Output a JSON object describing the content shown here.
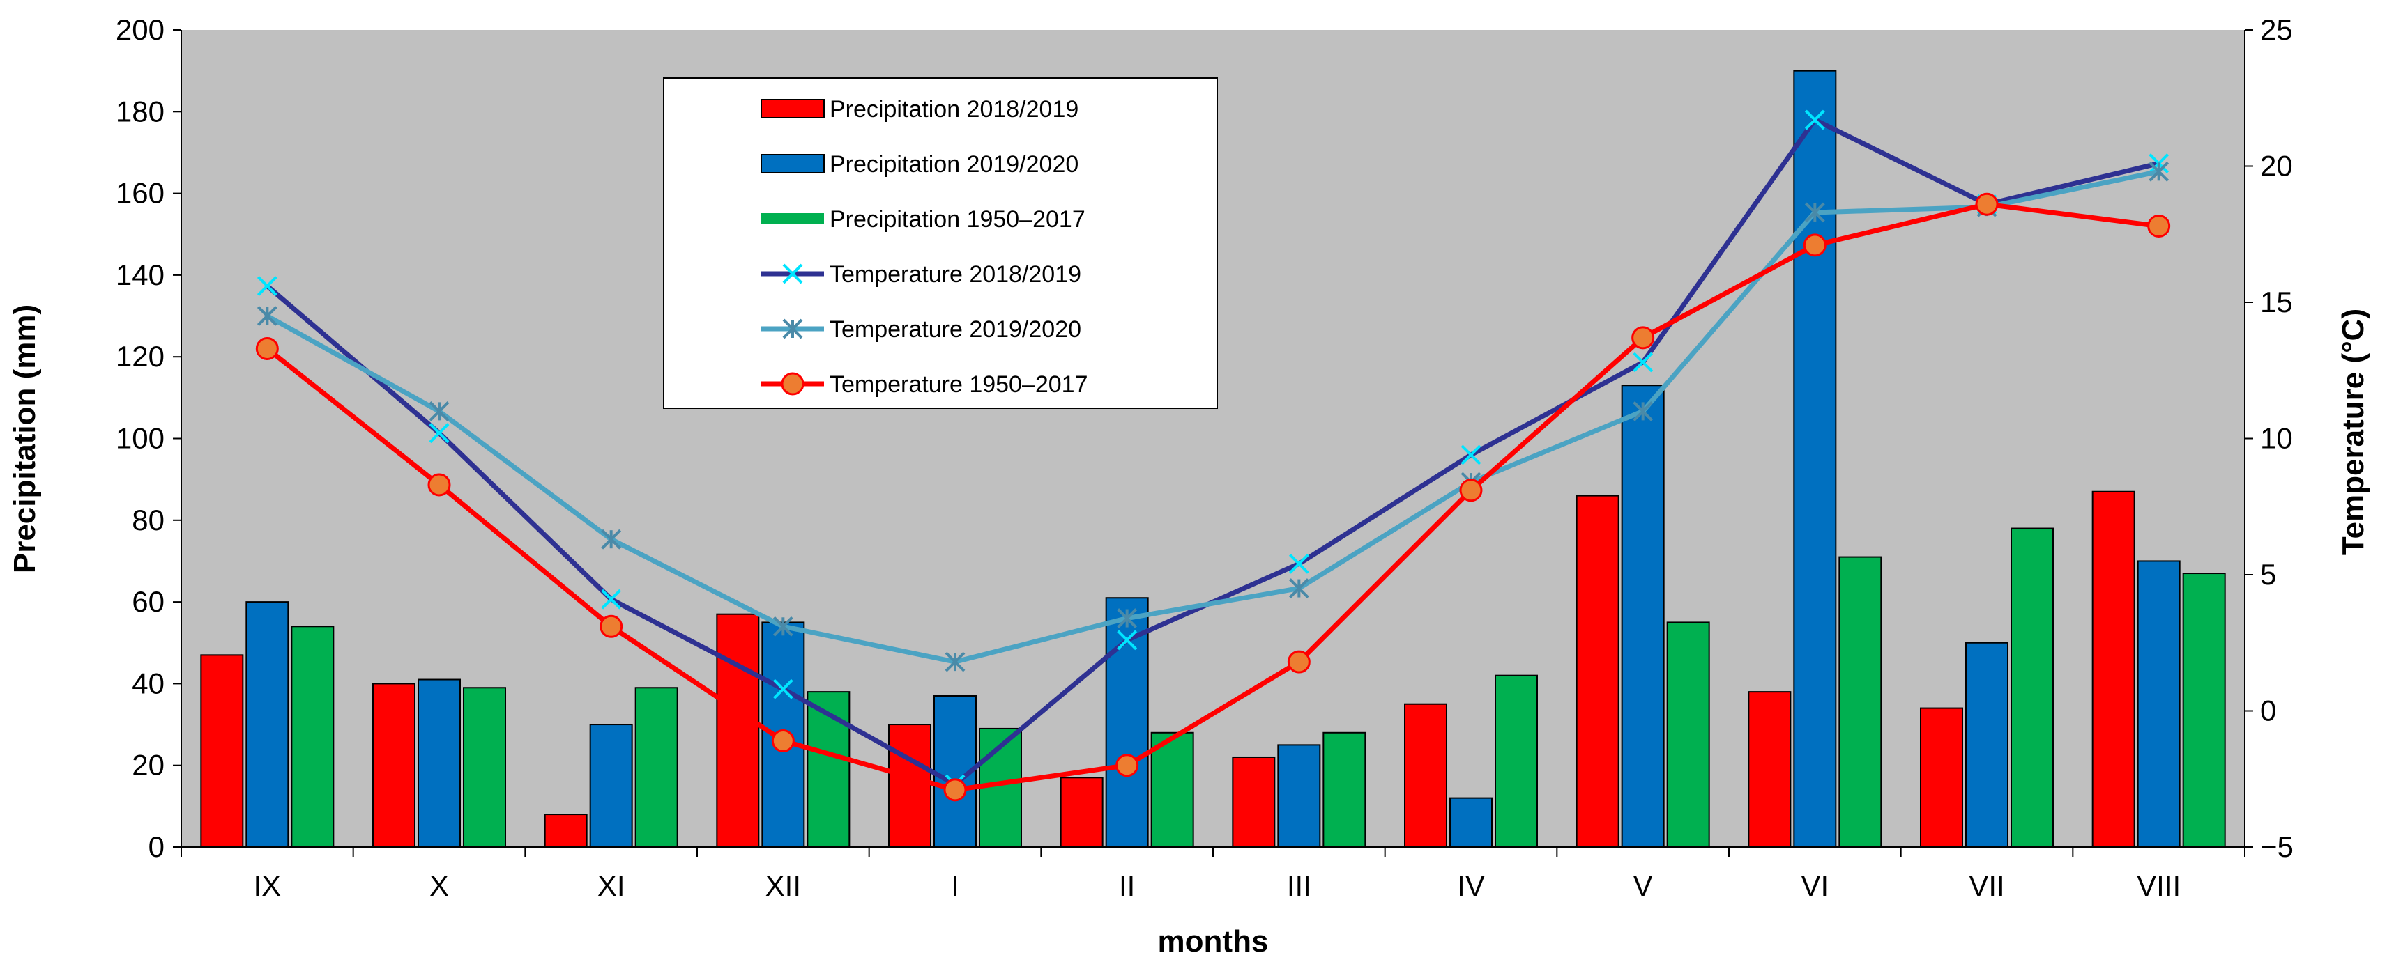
{
  "chart_data": {
    "type": "bar",
    "categories": [
      "IX",
      "X",
      "XI",
      "XII",
      "I",
      "II",
      "III",
      "IV",
      "V",
      "VI",
      "VII",
      "VIII"
    ],
    "xlabel": "months",
    "ylabel": "Precipitation (mm)",
    "y2label": "Temperature (°C)",
    "ylim": [
      0,
      200
    ],
    "y2lim": [
      -5,
      25
    ],
    "yticks": [
      "0",
      "20",
      "40",
      "60",
      "80",
      "100",
      "120",
      "140",
      "160",
      "180",
      "200"
    ],
    "y2ticks": [
      "−5",
      "0",
      "5",
      "10",
      "15",
      "20",
      "25"
    ],
    "grid": false,
    "legend_position": "top-center",
    "bar_series": [
      {
        "name": "Precipitation 2018/2019",
        "color": "#ff0000",
        "values": [
          47,
          40,
          8,
          57,
          30,
          17,
          22,
          35,
          86,
          38,
          34,
          87
        ]
      },
      {
        "name": "Precipitation 2019/2020",
        "color": "#0070c0",
        "values": [
          60,
          41,
          30,
          55,
          37,
          61,
          25,
          12,
          113,
          190,
          50,
          70
        ]
      },
      {
        "name": "Precipitation  1950–2017",
        "color": "#00b050",
        "values": [
          54,
          39,
          39,
          38,
          29,
          28,
          28,
          42,
          55,
          71,
          78,
          67
        ]
      }
    ],
    "line_series": [
      {
        "name": "Temperature 2018/2019",
        "color": "#2e3192",
        "marker": "x",
        "marker_color": "#00e5ff",
        "values": [
          15.6,
          10.2,
          4.1,
          0.8,
          -2.7,
          2.6,
          5.4,
          9.4,
          12.8,
          21.7,
          18.6,
          20.1
        ]
      },
      {
        "name": "Temperature 2019/2020",
        "color": "#4ba3c3",
        "marker": "star",
        "marker_color": "#4a8aa8",
        "values": [
          14.5,
          11.0,
          6.3,
          3.1,
          1.8,
          3.4,
          4.5,
          8.4,
          11.0,
          18.3,
          18.5,
          19.8
        ]
      },
      {
        "name": "Temperature  1950–2017",
        "color": "#ff0000",
        "marker": "circle",
        "marker_color": "#ed7d31",
        "values": [
          13.3,
          8.3,
          3.1,
          -1.1,
          -2.9,
          -2.0,
          1.8,
          8.1,
          13.7,
          17.1,
          18.6,
          17.8
        ]
      }
    ]
  }
}
